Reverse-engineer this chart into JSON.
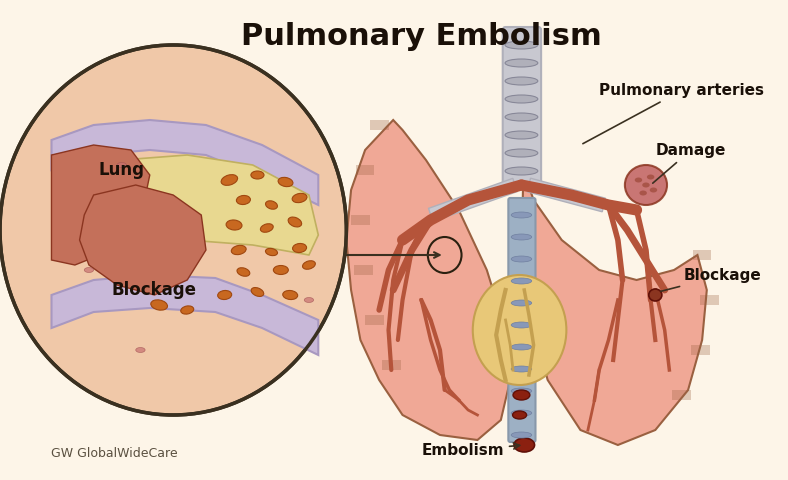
{
  "title": "Pulmonary Embolism",
  "title_fontsize": 22,
  "title_fontweight": "bold",
  "labels": {
    "lung": "Lung",
    "blockage_zoom": "Blockage",
    "pulmonary_arteries": "Pulmonary arteries",
    "damage": "Damage",
    "blockage_main": "Blockage",
    "embolism": "Embolism"
  },
  "colors": {
    "bg": "#fdf5e8",
    "lung_light": "#f0a896",
    "lung_dark": "#c4705a",
    "artery": "#b5543a",
    "artery_dark": "#8b3520",
    "vein_blue": "#9db0c4",
    "trachea": "#c8c8d0",
    "trachea_ring": "#b0b0ba",
    "heart_cream": "#e8c878",
    "heart_vessel": "#c4a050",
    "lavender": "#c8b8d8",
    "lavender_dark": "#a898c0",
    "skin_peach": "#f0c8a8",
    "blockage_color": "#8b3520",
    "embolism_color": "#8b2010",
    "circle_outline": "#3a3020",
    "clot_orange": "#c86820",
    "clot_dark": "#a04810",
    "damage_pink": "#c06060",
    "stripe_brown": "#9a6040"
  },
  "watermark": "GW GlobalWideCare",
  "watermark_fontsize": 9,
  "left_lung_x": [
    420,
    390,
    375,
    370,
    375,
    385,
    405,
    430,
    470,
    510,
    535,
    545,
    540,
    520,
    490,
    455,
    430,
    420
  ],
  "left_lung_y": [
    120,
    150,
    190,
    240,
    290,
    340,
    380,
    415,
    435,
    440,
    420,
    380,
    330,
    270,
    210,
    160,
    130,
    120
  ],
  "right_lung_x": [
    560,
    555,
    570,
    600,
    640,
    680,
    720,
    745,
    755,
    750,
    735,
    700,
    660,
    620,
    585,
    562,
    558,
    560
  ],
  "right_lung_y": [
    120,
    160,
    200,
    240,
    270,
    280,
    270,
    255,
    290,
    340,
    390,
    430,
    445,
    430,
    380,
    300,
    220,
    120
  ],
  "left_stripes": [
    [
      [
        395,
        415
      ],
      [
        120,
        130
      ]
    ],
    [
      [
        380,
        400
      ],
      [
        165,
        175
      ]
    ],
    [
      [
        375,
        395
      ],
      [
        215,
        225
      ]
    ],
    [
      [
        378,
        398
      ],
      [
        265,
        275
      ]
    ],
    [
      [
        390,
        410
      ],
      [
        315,
        325
      ]
    ],
    [
      [
        408,
        428
      ],
      [
        360,
        370
      ]
    ]
  ],
  "right_stripes": [
    [
      [
        740,
        760
      ],
      [
        250,
        260
      ]
    ],
    [
      [
        748,
        768
      ],
      [
        295,
        305
      ]
    ],
    [
      [
        738,
        758
      ],
      [
        345,
        355
      ]
    ],
    [
      [
        718,
        738
      ],
      [
        390,
        400
      ]
    ]
  ],
  "clot_positions": [
    [
      245,
      180,
      18,
      10,
      -15
    ],
    [
      275,
      175,
      14,
      8,
      0
    ],
    [
      305,
      182,
      16,
      9,
      10
    ],
    [
      260,
      200,
      15,
      9,
      -5
    ],
    [
      290,
      205,
      13,
      8,
      15
    ],
    [
      320,
      198,
      16,
      9,
      -10
    ],
    [
      250,
      225,
      17,
      10,
      5
    ],
    [
      285,
      228,
      14,
      8,
      -15
    ],
    [
      315,
      222,
      15,
      9,
      20
    ],
    [
      255,
      250,
      16,
      9,
      -10
    ],
    [
      290,
      252,
      13,
      7,
      10
    ],
    [
      320,
      248,
      15,
      9,
      -5
    ],
    [
      260,
      272,
      14,
      8,
      15
    ],
    [
      300,
      270,
      16,
      9,
      0
    ],
    [
      330,
      265,
      14,
      8,
      -15
    ],
    [
      240,
      295,
      15,
      9,
      -5
    ],
    [
      275,
      292,
      14,
      8,
      20
    ],
    [
      310,
      295,
      16,
      9,
      5
    ],
    [
      170,
      305,
      18,
      10,
      10
    ],
    [
      200,
      310,
      14,
      8,
      -10
    ]
  ]
}
